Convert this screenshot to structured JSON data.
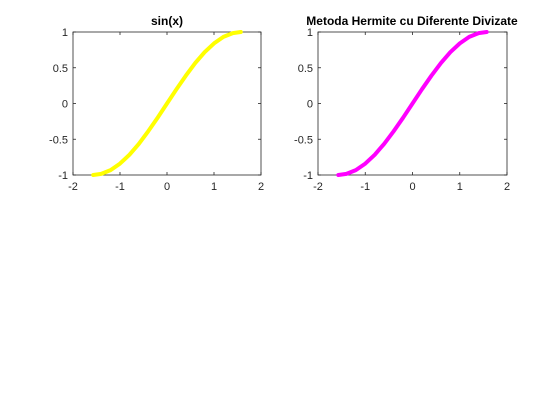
{
  "chart_data": [
    {
      "type": "line",
      "title": "sin(x)",
      "xlabel": "",
      "ylabel": "",
      "xlim": [
        -2,
        2
      ],
      "ylim": [
        -1,
        1
      ],
      "xticks": [
        -2,
        -1,
        0,
        1,
        2
      ],
      "yticks": [
        -1,
        -0.5,
        0,
        0.5,
        1
      ],
      "xtick_labels": [
        "-2",
        "-1",
        "0",
        "1",
        "2"
      ],
      "ytick_labels": [
        "-1",
        "-0.5",
        "0",
        "0.5",
        "1"
      ],
      "grid": false,
      "line_color": "#ffff00",
      "series": [
        {
          "x": [
            -1.5708,
            -1.4,
            -1.2,
            -1.0,
            -0.8,
            -0.6,
            -0.4,
            -0.2,
            0,
            0.2,
            0.4,
            0.6,
            0.8,
            1.0,
            1.2,
            1.4,
            1.5708
          ],
          "values": [
            -1,
            -0.985,
            -0.932,
            -0.841,
            -0.717,
            -0.565,
            -0.389,
            -0.199,
            0,
            0.199,
            0.389,
            0.565,
            0.717,
            0.841,
            0.932,
            0.985,
            1
          ]
        }
      ]
    },
    {
      "type": "line",
      "title": "Metoda Hermite cu Diferente Divizate",
      "xlabel": "",
      "ylabel": "",
      "xlim": [
        -2,
        2
      ],
      "ylim": [
        -1,
        1
      ],
      "xticks": [
        -2,
        -1,
        0,
        1,
        2
      ],
      "yticks": [
        -1,
        -0.5,
        0,
        0.5,
        1
      ],
      "xtick_labels": [
        "-2",
        "-1",
        "0",
        "1",
        "2"
      ],
      "ytick_labels": [
        "-1",
        "-0.5",
        "0",
        "0.5",
        "1"
      ],
      "grid": false,
      "line_color": "#ff00ff",
      "series": [
        {
          "x": [
            -1.5708,
            -1.4,
            -1.2,
            -1.0,
            -0.8,
            -0.6,
            -0.4,
            -0.2,
            0,
            0.2,
            0.4,
            0.6,
            0.8,
            1.0,
            1.2,
            1.4,
            1.5708
          ],
          "values": [
            -1,
            -0.985,
            -0.932,
            -0.841,
            -0.717,
            -0.565,
            -0.389,
            -0.199,
            0,
            0.199,
            0.389,
            0.565,
            0.717,
            0.841,
            0.932,
            0.985,
            1
          ]
        }
      ]
    }
  ]
}
